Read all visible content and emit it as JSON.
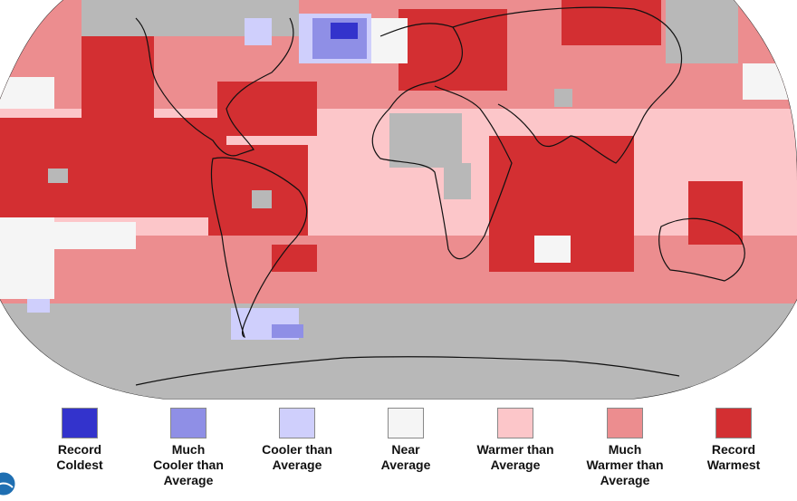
{
  "legend": {
    "items": [
      {
        "id": "record-coldest",
        "label": "Record\nColdest",
        "color": "#3333cc"
      },
      {
        "id": "much-cooler",
        "label": "Much\nCooler than\nAverage",
        "color": "#8f8fe6"
      },
      {
        "id": "cooler",
        "label": "Cooler than\nAverage",
        "color": "#cfcffc"
      },
      {
        "id": "near",
        "label": "Near\nAverage",
        "color": "#f5f5f5"
      },
      {
        "id": "warmer",
        "label": "Warmer than\nAverage",
        "color": "#fcc6c9"
      },
      {
        "id": "much-warmer",
        "label": "Much\nWarmer than\nAverage",
        "color": "#ec8d8f"
      },
      {
        "id": "record-warmest",
        "label": "Record\nWarmest",
        "color": "#d32f32"
      }
    ]
  },
  "map": {
    "no_data_color": "#b8b8b8",
    "outline_color": "#111111"
  },
  "logo": {
    "icon": "noaa-logo-icon"
  }
}
